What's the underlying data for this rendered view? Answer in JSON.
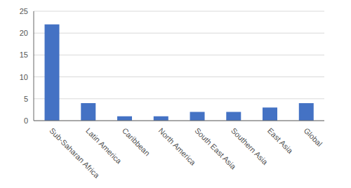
{
  "chart_data": {
    "type": "bar",
    "categories": [
      "Sub-Saharan Africa",
      "Latin America",
      "Caribbean",
      "North America",
      "South East Asia",
      "Southern Asia",
      "East Asia",
      "Global"
    ],
    "values": [
      22,
      4,
      1,
      1,
      2,
      2,
      3,
      4
    ],
    "color": "#4472C4",
    "ylim": [
      0,
      25
    ],
    "yticks": [
      0,
      5,
      10,
      15,
      20,
      25
    ],
    "grid": true
  }
}
